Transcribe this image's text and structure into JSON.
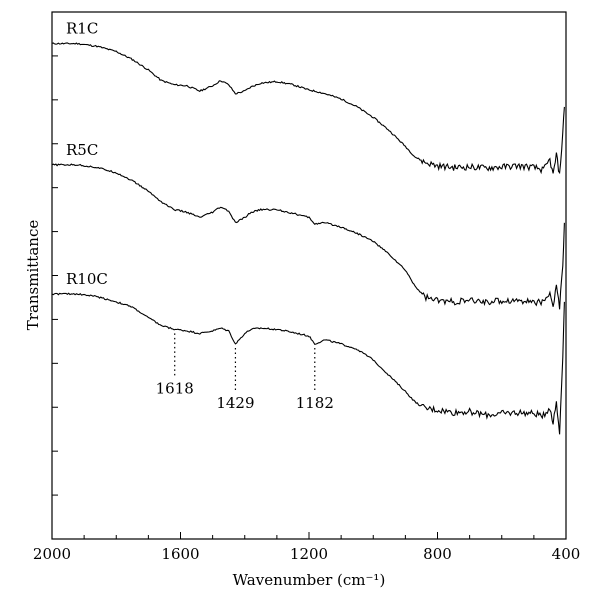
{
  "chart_data": {
    "type": "line",
    "title": "",
    "xlabel": "Wavenumber (cm⁻¹)",
    "ylabel": "Transmittance",
    "xlim": [
      2000,
      400
    ],
    "x_ticks": [
      2000,
      1600,
      1200,
      800,
      400
    ],
    "y_ticks_labeled": false,
    "grid": false,
    "legend": "none",
    "series": [
      {
        "name": "R1C",
        "points": [
          [
            2000,
            0.94
          ],
          [
            1920,
            0.94
          ],
          [
            1860,
            0.935
          ],
          [
            1800,
            0.925
          ],
          [
            1750,
            0.91
          ],
          [
            1700,
            0.89
          ],
          [
            1660,
            0.87
          ],
          [
            1620,
            0.862
          ],
          [
            1580,
            0.86
          ],
          [
            1540,
            0.85
          ],
          [
            1500,
            0.86
          ],
          [
            1475,
            0.87
          ],
          [
            1450,
            0.862
          ],
          [
            1429,
            0.845
          ],
          [
            1400,
            0.85
          ],
          [
            1380,
            0.858
          ],
          [
            1350,
            0.865
          ],
          [
            1300,
            0.868
          ],
          [
            1250,
            0.862
          ],
          [
            1200,
            0.852
          ],
          [
            1182,
            0.85
          ],
          [
            1150,
            0.845
          ],
          [
            1100,
            0.835
          ],
          [
            1050,
            0.82
          ],
          [
            1000,
            0.8
          ],
          [
            950,
            0.775
          ],
          [
            900,
            0.745
          ],
          [
            870,
            0.725
          ],
          [
            840,
            0.715
          ],
          [
            800,
            0.708
          ],
          [
            750,
            0.705
          ],
          [
            700,
            0.706
          ],
          [
            650,
            0.704
          ],
          [
            600,
            0.706
          ],
          [
            550,
            0.708
          ],
          [
            500,
            0.705
          ],
          [
            470,
            0.7
          ],
          [
            450,
            0.72
          ],
          [
            440,
            0.69
          ],
          [
            430,
            0.73
          ],
          [
            420,
            0.69
          ],
          [
            410,
            0.77
          ],
          [
            405,
            0.82
          ]
        ]
      },
      {
        "name": "R5C",
        "points": [
          [
            2000,
            0.71
          ],
          [
            1920,
            0.71
          ],
          [
            1860,
            0.705
          ],
          [
            1800,
            0.695
          ],
          [
            1750,
            0.68
          ],
          [
            1700,
            0.66
          ],
          [
            1660,
            0.64
          ],
          [
            1620,
            0.625
          ],
          [
            1580,
            0.62
          ],
          [
            1540,
            0.61
          ],
          [
            1500,
            0.62
          ],
          [
            1475,
            0.63
          ],
          [
            1450,
            0.622
          ],
          [
            1429,
            0.6
          ],
          [
            1400,
            0.61
          ],
          [
            1380,
            0.62
          ],
          [
            1350,
            0.625
          ],
          [
            1300,
            0.625
          ],
          [
            1250,
            0.618
          ],
          [
            1200,
            0.61
          ],
          [
            1182,
            0.598
          ],
          [
            1150,
            0.6
          ],
          [
            1100,
            0.592
          ],
          [
            1050,
            0.58
          ],
          [
            1000,
            0.565
          ],
          [
            950,
            0.54
          ],
          [
            900,
            0.51
          ],
          [
            870,
            0.48
          ],
          [
            840,
            0.46
          ],
          [
            800,
            0.452
          ],
          [
            750,
            0.45
          ],
          [
            700,
            0.452
          ],
          [
            650,
            0.45
          ],
          [
            600,
            0.452
          ],
          [
            550,
            0.453
          ],
          [
            500,
            0.45
          ],
          [
            470,
            0.448
          ],
          [
            450,
            0.47
          ],
          [
            440,
            0.44
          ],
          [
            430,
            0.48
          ],
          [
            420,
            0.44
          ],
          [
            410,
            0.52
          ],
          [
            405,
            0.6
          ]
        ]
      },
      {
        "name": "R10C",
        "points": [
          [
            2000,
            0.465
          ],
          [
            1920,
            0.465
          ],
          [
            1860,
            0.46
          ],
          [
            1800,
            0.45
          ],
          [
            1750,
            0.44
          ],
          [
            1700,
            0.42
          ],
          [
            1660,
            0.405
          ],
          [
            1620,
            0.398
          ],
          [
            1580,
            0.395
          ],
          [
            1540,
            0.39
          ],
          [
            1500,
            0.395
          ],
          [
            1475,
            0.4
          ],
          [
            1450,
            0.395
          ],
          [
            1429,
            0.37
          ],
          [
            1400,
            0.39
          ],
          [
            1380,
            0.398
          ],
          [
            1350,
            0.4
          ],
          [
            1300,
            0.398
          ],
          [
            1250,
            0.392
          ],
          [
            1200,
            0.385
          ],
          [
            1182,
            0.37
          ],
          [
            1150,
            0.378
          ],
          [
            1100,
            0.37
          ],
          [
            1050,
            0.36
          ],
          [
            1000,
            0.34
          ],
          [
            950,
            0.31
          ],
          [
            900,
            0.28
          ],
          [
            870,
            0.26
          ],
          [
            840,
            0.248
          ],
          [
            800,
            0.245
          ],
          [
            750,
            0.24
          ],
          [
            700,
            0.242
          ],
          [
            650,
            0.235
          ],
          [
            600,
            0.238
          ],
          [
            550,
            0.24
          ],
          [
            500,
            0.238
          ],
          [
            470,
            0.235
          ],
          [
            450,
            0.25
          ],
          [
            440,
            0.22
          ],
          [
            430,
            0.26
          ],
          [
            420,
            0.2
          ],
          [
            410,
            0.35
          ],
          [
            405,
            0.45
          ]
        ]
      }
    ],
    "annotations": [
      {
        "x": 1618,
        "label": "1618"
      },
      {
        "x": 1429,
        "label": "1429"
      },
      {
        "x": 1182,
        "label": "1182"
      }
    ]
  }
}
